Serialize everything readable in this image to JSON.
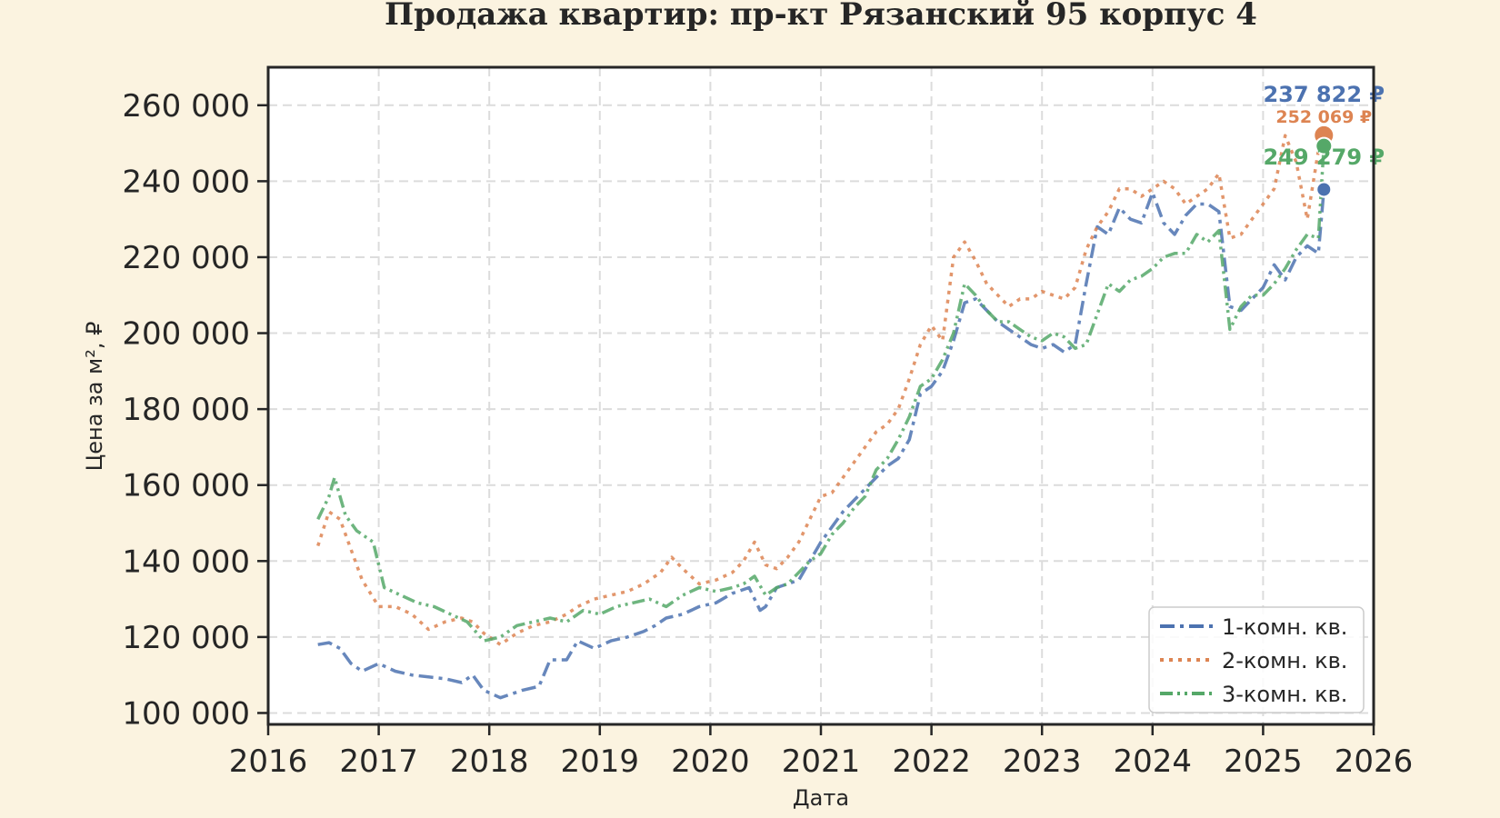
{
  "chart_data": {
    "type": "line",
    "title": "Продажа квартир: пр-кт Рязанский 95 корпус 4",
    "xlabel": "Дата",
    "ylabel": "Цена за м², ₽",
    "xlim": [
      2016.0,
      2026.0
    ],
    "ylim": [
      97000,
      270000
    ],
    "grid": true,
    "legend_position": "lower-right",
    "x_ticks": [
      2016,
      2017,
      2018,
      2019,
      2020,
      2021,
      2022,
      2023,
      2024,
      2025,
      2026
    ],
    "x_tick_labels": [
      "2016",
      "2017",
      "2018",
      "2019",
      "2020",
      "2021",
      "2022",
      "2023",
      "2024",
      "2025",
      "2026"
    ],
    "y_ticks": [
      100000,
      120000,
      140000,
      160000,
      180000,
      200000,
      220000,
      240000,
      260000
    ],
    "y_tick_labels": [
      "100 000",
      "120 000",
      "140 000",
      "160 000",
      "180 000",
      "200 000",
      "220 000",
      "240 000",
      "260 000"
    ],
    "series": [
      {
        "name": "1-комн. кв.",
        "color": "#4c72b0",
        "dash": "dashdot",
        "end_label": "237 822 ₽",
        "end_value": 237822,
        "x": [
          2016.45,
          2016.55,
          2016.65,
          2016.75,
          2016.85,
          2017.0,
          2017.15,
          2017.3,
          2017.45,
          2017.6,
          2017.75,
          2017.85,
          2017.95,
          2018.1,
          2018.2,
          2018.3,
          2018.45,
          2018.55,
          2018.7,
          2018.8,
          2018.95,
          2019.1,
          2019.25,
          2019.4,
          2019.5,
          2019.6,
          2019.75,
          2019.9,
          2020.05,
          2020.2,
          2020.35,
          2020.45,
          2020.5,
          2020.6,
          2020.7,
          2020.8,
          2020.9,
          2021.0,
          2021.1,
          2021.2,
          2021.3,
          2021.4,
          2021.5,
          2021.6,
          2021.7,
          2021.8,
          2021.9,
          2022.0,
          2022.1,
          2022.2,
          2022.3,
          2022.4,
          2022.5,
          2022.6,
          2022.7,
          2022.8,
          2022.9,
          2023.0,
          2023.1,
          2023.2,
          2023.3,
          2023.4,
          2023.5,
          2023.6,
          2023.7,
          2023.8,
          2023.9,
          2024.0,
          2024.1,
          2024.2,
          2024.3,
          2024.4,
          2024.5,
          2024.6,
          2024.7,
          2024.8,
          2024.9,
          2025.0,
          2025.1,
          2025.2,
          2025.3,
          2025.4,
          2025.5,
          2025.55
        ],
        "values": [
          118000,
          118500,
          117000,
          113000,
          111000,
          113000,
          111000,
          110000,
          109500,
          109000,
          108000,
          110000,
          106000,
          104000,
          105000,
          106000,
          107000,
          114000,
          114000,
          119000,
          117000,
          119000,
          120000,
          121500,
          123000,
          125000,
          126000,
          128000,
          129000,
          131500,
          133000,
          127000,
          128000,
          133000,
          134000,
          135000,
          140000,
          145000,
          149000,
          153000,
          156000,
          159000,
          162000,
          165000,
          167000,
          172000,
          184000,
          186000,
          190000,
          198000,
          208000,
          209000,
          206000,
          203000,
          201000,
          199000,
          197000,
          196000,
          197000,
          195000,
          197000,
          213000,
          228000,
          226000,
          233000,
          230000,
          229000,
          237000,
          229000,
          226000,
          231000,
          234000,
          234000,
          232000,
          207000,
          206000,
          209000,
          212000,
          218000,
          214000,
          220000,
          223000,
          221000,
          237822
        ]
      },
      {
        "name": "2-комн. кв.",
        "color": "#dd8452",
        "dash": "dotted",
        "end_label": "252 069 ₽",
        "end_value": 252069,
        "x": [
          2016.45,
          2016.55,
          2016.65,
          2016.75,
          2016.85,
          2017.0,
          2017.15,
          2017.3,
          2017.45,
          2017.6,
          2017.75,
          2017.85,
          2017.95,
          2018.1,
          2018.25,
          2018.4,
          2018.55,
          2018.7,
          2018.8,
          2018.95,
          2019.1,
          2019.25,
          2019.4,
          2019.55,
          2019.65,
          2019.75,
          2019.9,
          2020.05,
          2020.2,
          2020.3,
          2020.4,
          2020.5,
          2020.6,
          2020.7,
          2020.8,
          2020.9,
          2021.0,
          2021.1,
          2021.2,
          2021.3,
          2021.4,
          2021.5,
          2021.6,
          2021.7,
          2021.8,
          2021.9,
          2022.0,
          2022.1,
          2022.2,
          2022.3,
          2022.4,
          2022.5,
          2022.6,
          2022.7,
          2022.8,
          2022.9,
          2023.0,
          2023.1,
          2023.2,
          2023.3,
          2023.4,
          2023.5,
          2023.6,
          2023.7,
          2023.8,
          2023.9,
          2024.0,
          2024.1,
          2024.2,
          2024.3,
          2024.4,
          2024.5,
          2024.6,
          2024.7,
          2024.8,
          2024.9,
          2025.0,
          2025.1,
          2025.2,
          2025.3,
          2025.4,
          2025.5,
          2025.55
        ],
        "values": [
          144000,
          153000,
          151000,
          143000,
          135000,
          128000,
          128000,
          126000,
          122000,
          124000,
          125000,
          124000,
          121000,
          118000,
          121000,
          123000,
          124000,
          126000,
          128000,
          130000,
          131000,
          132000,
          134000,
          137000,
          141000,
          138000,
          134000,
          135000,
          137000,
          140000,
          145000,
          139000,
          138000,
          141000,
          145000,
          151000,
          157000,
          158000,
          162000,
          166000,
          170000,
          174000,
          176000,
          180000,
          188000,
          197000,
          202000,
          198000,
          220000,
          224000,
          219000,
          213000,
          210000,
          207000,
          209000,
          209000,
          211000,
          210000,
          209000,
          212000,
          222000,
          228000,
          232000,
          238000,
          238000,
          236000,
          238000,
          240000,
          238000,
          234000,
          236000,
          238000,
          242000,
          225000,
          226000,
          230000,
          234000,
          238000,
          252000,
          245000,
          230000,
          248000,
          252069
        ]
      },
      {
        "name": "3-комн. кв.",
        "color": "#55a868",
        "dash": "dashdotdot",
        "end_label": "249 279 ₽",
        "end_value": 249279,
        "x": [
          2016.45,
          2016.55,
          2016.6,
          2016.7,
          2016.8,
          2016.95,
          2017.05,
          2017.2,
          2017.35,
          2017.5,
          2017.65,
          2017.8,
          2017.95,
          2018.1,
          2018.25,
          2018.4,
          2018.55,
          2018.7,
          2018.85,
          2019.0,
          2019.15,
          2019.3,
          2019.45,
          2019.6,
          2019.75,
          2019.9,
          2020.05,
          2020.2,
          2020.3,
          2020.4,
          2020.5,
          2020.6,
          2020.7,
          2020.8,
          2020.9,
          2021.0,
          2021.1,
          2021.2,
          2021.3,
          2021.4,
          2021.5,
          2021.6,
          2021.7,
          2021.8,
          2021.9,
          2022.0,
          2022.1,
          2022.2,
          2022.3,
          2022.4,
          2022.5,
          2022.6,
          2022.7,
          2022.8,
          2022.9,
          2023.0,
          2023.1,
          2023.2,
          2023.3,
          2023.4,
          2023.5,
          2023.6,
          2023.7,
          2023.8,
          2023.9,
          2024.0,
          2024.1,
          2024.2,
          2024.3,
          2024.4,
          2024.5,
          2024.6,
          2024.7,
          2024.8,
          2024.9,
          2025.0,
          2025.1,
          2025.2,
          2025.3,
          2025.4,
          2025.5,
          2025.55
        ],
        "values": [
          151000,
          157000,
          162000,
          152000,
          148000,
          145000,
          133000,
          131000,
          129000,
          128000,
          126000,
          124000,
          119000,
          120000,
          123000,
          124000,
          125000,
          124000,
          127000,
          126000,
          128000,
          129000,
          130000,
          128000,
          131000,
          133000,
          132000,
          133000,
          134000,
          136000,
          131000,
          133000,
          134000,
          137000,
          140000,
          142000,
          147000,
          150000,
          154000,
          157000,
          164000,
          167000,
          172000,
          178000,
          186000,
          188000,
          193000,
          200000,
          213000,
          210000,
          206000,
          203000,
          203000,
          201000,
          199000,
          198000,
          200000,
          199000,
          196000,
          197000,
          205000,
          213000,
          211000,
          214000,
          215000,
          217000,
          220000,
          221000,
          221000,
          226000,
          224000,
          227000,
          201000,
          207000,
          210000,
          210000,
          213000,
          217000,
          222000,
          226000,
          225000,
          249279
        ]
      }
    ]
  }
}
